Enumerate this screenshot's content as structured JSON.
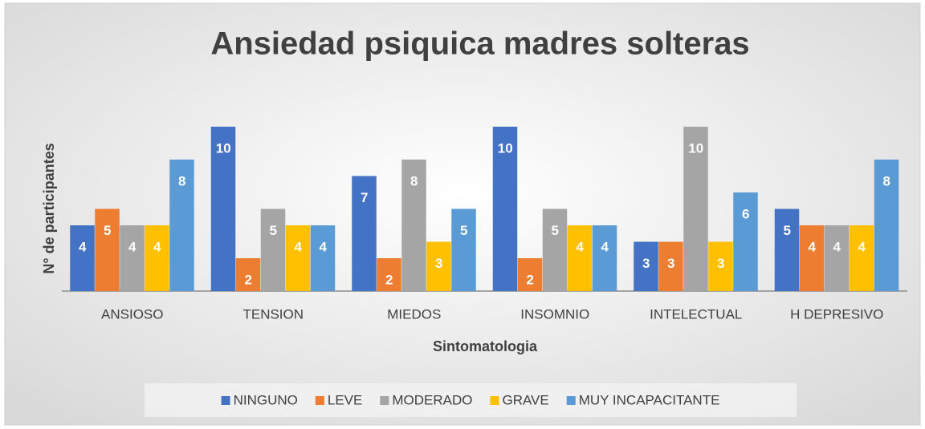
{
  "chart_data": {
    "type": "bar",
    "title": "Ansiedad psiquica madres solteras",
    "x_label": "Sintomatologia",
    "y_label": "N° de participantes",
    "categories": [
      "ANSIOSO",
      "TENSION",
      "MIEDOS",
      "INSOMNIO",
      "INTELECTUAL",
      "H DEPRESIVO"
    ],
    "series": [
      {
        "name": "NINGUNO",
        "color": "#4472c4",
        "values": [
          4,
          10,
          7,
          10,
          3,
          5
        ]
      },
      {
        "name": "LEVE",
        "color": "#ed7d31",
        "values": [
          5,
          2,
          2,
          2,
          3,
          4
        ]
      },
      {
        "name": "MODERADO",
        "color": "#a5a5a5",
        "values": [
          4,
          5,
          8,
          5,
          10,
          4
        ]
      },
      {
        "name": "GRAVE",
        "color": "#ffc000",
        "values": [
          4,
          4,
          3,
          4,
          3,
          4
        ]
      },
      {
        "name": "MUY INCAPACITANTE",
        "color": "#5b9bd5",
        "values": [
          8,
          4,
          5,
          4,
          6,
          8
        ]
      }
    ],
    "legend": "bottom"
  }
}
